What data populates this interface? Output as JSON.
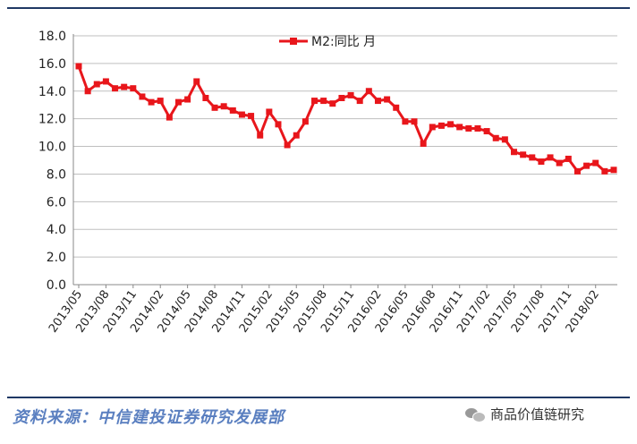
{
  "chart_data": {
    "type": "line",
    "title": "",
    "xlabel": "",
    "ylabel": "",
    "ylim": [
      0,
      18
    ],
    "yticks": [
      "0.0",
      "2.0",
      "4.0",
      "6.0",
      "8.0",
      "10.0",
      "12.0",
      "14.0",
      "16.0",
      "18.0"
    ],
    "xtick_labels": [
      "2013/05",
      "2013/08",
      "2013/11",
      "2014/02",
      "2014/05",
      "2014/08",
      "2014/11",
      "2015/02",
      "2015/05",
      "2015/08",
      "2015/11",
      "2016/02",
      "2016/05",
      "2016/08",
      "2016/11",
      "2017/02",
      "2017/05",
      "2017/08",
      "2017/11",
      "2018/02"
    ],
    "legend_position": "top-center",
    "grid": true,
    "series": [
      {
        "name": "M2:同比 月",
        "color": "#e8161b",
        "x": [
          "2013/05",
          "2013/06",
          "2013/07",
          "2013/08",
          "2013/09",
          "2013/10",
          "2013/11",
          "2013/12",
          "2014/01",
          "2014/02",
          "2014/03",
          "2014/04",
          "2014/05",
          "2014/06",
          "2014/07",
          "2014/08",
          "2014/09",
          "2014/10",
          "2014/11",
          "2014/12",
          "2015/01",
          "2015/02",
          "2015/03",
          "2015/04",
          "2015/05",
          "2015/06",
          "2015/07",
          "2015/08",
          "2015/09",
          "2015/10",
          "2015/11",
          "2015/12",
          "2016/01",
          "2016/02",
          "2016/03",
          "2016/04",
          "2016/05",
          "2016/06",
          "2016/07",
          "2016/08",
          "2016/09",
          "2016/10",
          "2016/11",
          "2016/12",
          "2017/01",
          "2017/02",
          "2017/03",
          "2017/04",
          "2017/05",
          "2017/06",
          "2017/07",
          "2017/08",
          "2017/09",
          "2017/10",
          "2017/11",
          "2017/12",
          "2018/01",
          "2018/02",
          "2018/03",
          "2018/04"
        ],
        "values": [
          15.8,
          14.0,
          14.5,
          14.7,
          14.2,
          14.3,
          14.2,
          13.6,
          13.2,
          13.3,
          12.1,
          13.2,
          13.4,
          14.7,
          13.5,
          12.8,
          12.9,
          12.6,
          12.3,
          12.2,
          10.8,
          12.5,
          11.6,
          10.1,
          10.8,
          11.8,
          13.3,
          13.3,
          13.1,
          13.5,
          13.7,
          13.3,
          14.0,
          13.3,
          13.4,
          12.8,
          11.8,
          11.8,
          10.2,
          11.4,
          11.5,
          11.6,
          11.4,
          11.3,
          11.3,
          11.1,
          10.6,
          10.5,
          9.6,
          9.4,
          9.2,
          8.9,
          9.2,
          8.8,
          9.1,
          8.2,
          8.6,
          8.8,
          8.2,
          8.3
        ]
      }
    ]
  },
  "footer": {
    "source_text": "资料来源：中信建投证券研究发展部",
    "brand_text": "商品价值链研究"
  },
  "colors": {
    "line": "#e8161b",
    "grid": "#bfbfbf",
    "footer_rule": "#1f3864"
  },
  "icons": {
    "brand_icon": "wechat-icon"
  }
}
